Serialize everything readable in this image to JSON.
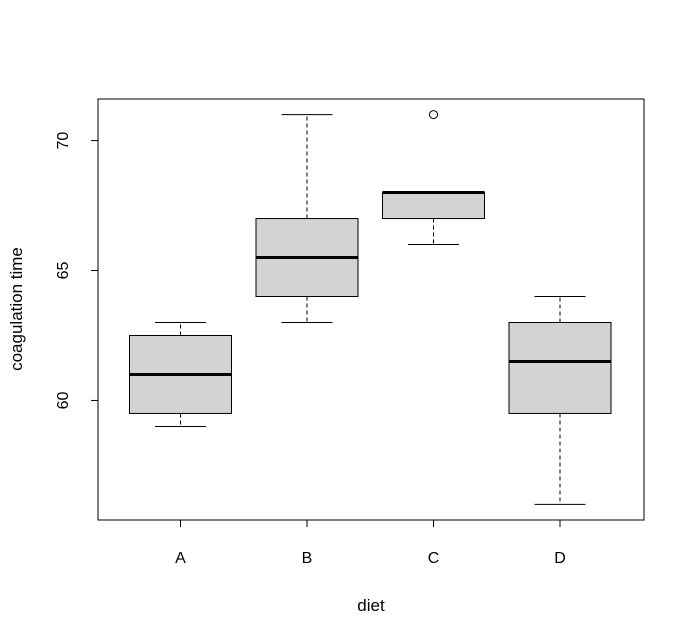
{
  "chart_data": {
    "type": "boxplot",
    "xlabel": "diet",
    "ylabel": "coagulation time",
    "categories": [
      "A",
      "B",
      "C",
      "D"
    ],
    "yticks": [
      "60",
      "65",
      "70"
    ],
    "ylim": [
      55.4,
      71.6
    ],
    "grid": false,
    "box_fill": "#d3d3d3",
    "line_color": "#000000",
    "boxes": [
      {
        "category": "A",
        "whisker_low": 59,
        "q1": 59.5,
        "median": 61,
        "q3": 62.5,
        "whisker_high": 63,
        "outliers": []
      },
      {
        "category": "B",
        "whisker_low": 63,
        "q1": 64,
        "median": 65.5,
        "q3": 67,
        "whisker_high": 71,
        "outliers": []
      },
      {
        "category": "C",
        "whisker_low": 66,
        "q1": 67,
        "median": 68,
        "q3": 68,
        "whisker_high": 68,
        "outliers": [
          71
        ]
      },
      {
        "category": "D",
        "whisker_low": 56,
        "q1": 59.5,
        "median": 61.5,
        "q3": 63,
        "whisker_high": 64,
        "outliers": []
      }
    ]
  }
}
